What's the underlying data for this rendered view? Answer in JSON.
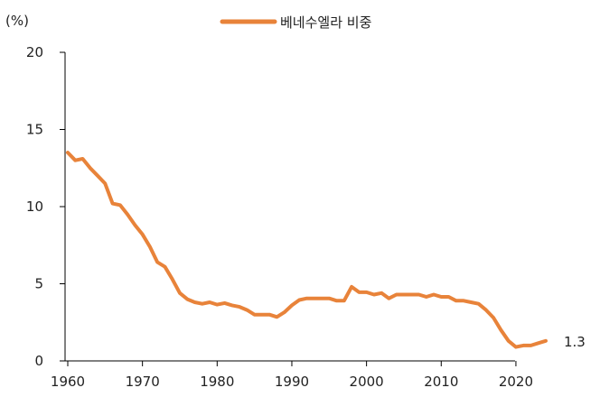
{
  "chart_data": {
    "type": "line",
    "unit": "(%)",
    "legend": {
      "label": "베네수엘라 비중",
      "position": "top-center"
    },
    "series": [
      {
        "name": "베네수엘라 비중",
        "color": "#E8833A",
        "x": [
          1960,
          1961,
          1962,
          1963,
          1964,
          1965,
          1966,
          1967,
          1968,
          1969,
          1970,
          1971,
          1972,
          1973,
          1974,
          1975,
          1976,
          1977,
          1978,
          1979,
          1980,
          1981,
          1982,
          1983,
          1984,
          1985,
          1986,
          1987,
          1988,
          1989,
          1990,
          1991,
          1992,
          1993,
          1994,
          1995,
          1996,
          1997,
          1998,
          1999,
          2000,
          2001,
          2002,
          2003,
          2004,
          2005,
          2006,
          2007,
          2008,
          2009,
          2010,
          2011,
          2012,
          2013,
          2014,
          2015,
          2016,
          2017,
          2018,
          2019,
          2020,
          2021,
          2022,
          2023,
          2024
        ],
        "values": [
          13.5,
          13.0,
          13.1,
          12.5,
          12.0,
          11.5,
          10.2,
          10.1,
          9.5,
          8.8,
          8.2,
          7.4,
          6.4,
          6.1,
          5.3,
          4.4,
          4.0,
          3.8,
          3.7,
          3.8,
          3.65,
          3.75,
          3.6,
          3.5,
          3.3,
          3.0,
          3.0,
          3.0,
          2.85,
          3.15,
          3.6,
          3.95,
          4.05,
          4.05,
          4.05,
          4.05,
          3.9,
          3.9,
          4.8,
          4.45,
          4.45,
          4.3,
          4.4,
          4.05,
          4.3,
          4.3,
          4.3,
          4.3,
          4.15,
          4.3,
          4.15,
          4.15,
          3.9,
          3.9,
          3.8,
          3.7,
          3.3,
          2.8,
          2.0,
          1.3,
          0.9,
          1.0,
          1.0,
          1.15,
          1.3
        ]
      }
    ],
    "end_label": "1.3",
    "x_ticks": [
      "1960",
      "1970",
      "1980",
      "1990",
      "2000",
      "2010",
      "2020"
    ],
    "y_ticks": [
      "0",
      "5",
      "10",
      "15",
      "20"
    ],
    "xlim": [
      1960,
      2024
    ],
    "ylim": [
      0,
      20
    ],
    "grid": false
  }
}
